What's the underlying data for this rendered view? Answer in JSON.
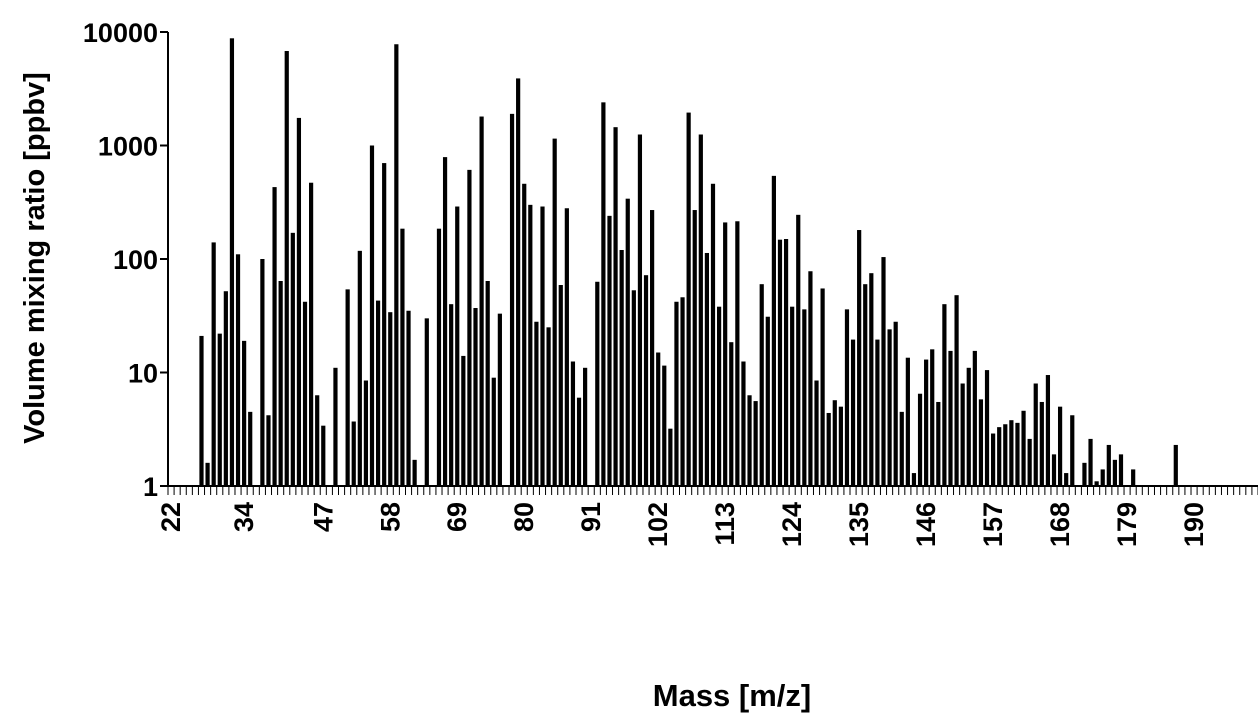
{
  "chart_data": {
    "type": "bar",
    "title": "",
    "xlabel": "Mass [m/z]",
    "ylabel": "Volume mixing ratio [ppbv]",
    "y_scale": "log",
    "ylim": [
      1,
      10000
    ],
    "y_ticks": [
      "1",
      "10",
      "100",
      "1000",
      "10000"
    ],
    "x_range": [
      22,
      201
    ],
    "x_ticks": [
      "22",
      "34",
      "47",
      "58",
      "69",
      "80",
      "91",
      "102",
      "113",
      "124",
      "135",
      "146",
      "157",
      "168",
      "179",
      "190"
    ],
    "bar_color": "#000000",
    "grid": false,
    "legend": "none",
    "x": [
      27,
      28,
      29,
      30,
      31,
      32,
      33,
      34,
      35,
      37,
      38,
      39,
      40,
      41,
      42,
      43,
      44,
      45,
      46,
      47,
      49,
      51,
      52,
      53,
      54,
      55,
      56,
      57,
      58,
      59,
      60,
      61,
      62,
      64,
      66,
      67,
      68,
      69,
      70,
      71,
      72,
      73,
      74,
      75,
      76,
      78,
      79,
      80,
      81,
      82,
      83,
      84,
      85,
      86,
      87,
      88,
      89,
      90,
      92,
      93,
      94,
      95,
      96,
      97,
      98,
      99,
      100,
      101,
      102,
      103,
      104,
      105,
      106,
      107,
      108,
      109,
      110,
      111,
      112,
      113,
      114,
      115,
      116,
      117,
      118,
      119,
      120,
      121,
      122,
      123,
      124,
      125,
      126,
      127,
      128,
      129,
      130,
      131,
      132,
      133,
      134,
      135,
      136,
      137,
      138,
      139,
      140,
      141,
      142,
      143,
      144,
      145,
      146,
      147,
      148,
      149,
      150,
      151,
      152,
      153,
      154,
      155,
      156,
      157,
      158,
      159,
      160,
      161,
      162,
      163,
      164,
      165,
      166,
      167,
      168,
      169,
      170,
      172,
      173,
      174,
      175,
      176,
      177,
      178,
      180,
      187
    ],
    "values": [
      21,
      1.6,
      140,
      22,
      52,
      8800,
      110,
      19,
      4.5,
      100,
      4.2,
      430,
      64,
      6800,
      170,
      1750,
      42,
      470,
      6.3,
      3.4,
      11,
      54,
      3.7,
      118,
      8.5,
      1000,
      43,
      700,
      34,
      7800,
      185,
      35,
      1.7,
      30,
      185,
      790,
      40,
      290,
      14,
      610,
      37,
      1800,
      64,
      9,
      33,
      1900,
      3900,
      460,
      300,
      28,
      290,
      25,
      1150,
      59,
      280,
      12.5,
      6,
      11,
      63,
      2400,
      240,
      1450,
      120,
      340,
      53,
      1250,
      72,
      270,
      15,
      11.5,
      3.2,
      42,
      46,
      1950,
      270,
      1250,
      113,
      460,
      38,
      210,
      18.5,
      215,
      12.5,
      6.3,
      5.6,
      60,
      31,
      540,
      148,
      150,
      38,
      245,
      36,
      78,
      8.5,
      55,
      4.4,
      5.7,
      5,
      36,
      19.5,
      180,
      60,
      75,
      19.5,
      104,
      24,
      28,
      4.5,
      13.5,
      1.3,
      6.5,
      13,
      16,
      5.5,
      40,
      15.5,
      48,
      8,
      11,
      15.5,
      5.8,
      10.5,
      2.9,
      3.3,
      3.5,
      3.8,
      3.6,
      4.6,
      2.6,
      8,
      5.5,
      9.5,
      1.9,
      5,
      1.3,
      4.2,
      1.6,
      2.6,
      1.1,
      1.4,
      2.3,
      1.7,
      1.9,
      1.4,
      2.3
    ]
  }
}
